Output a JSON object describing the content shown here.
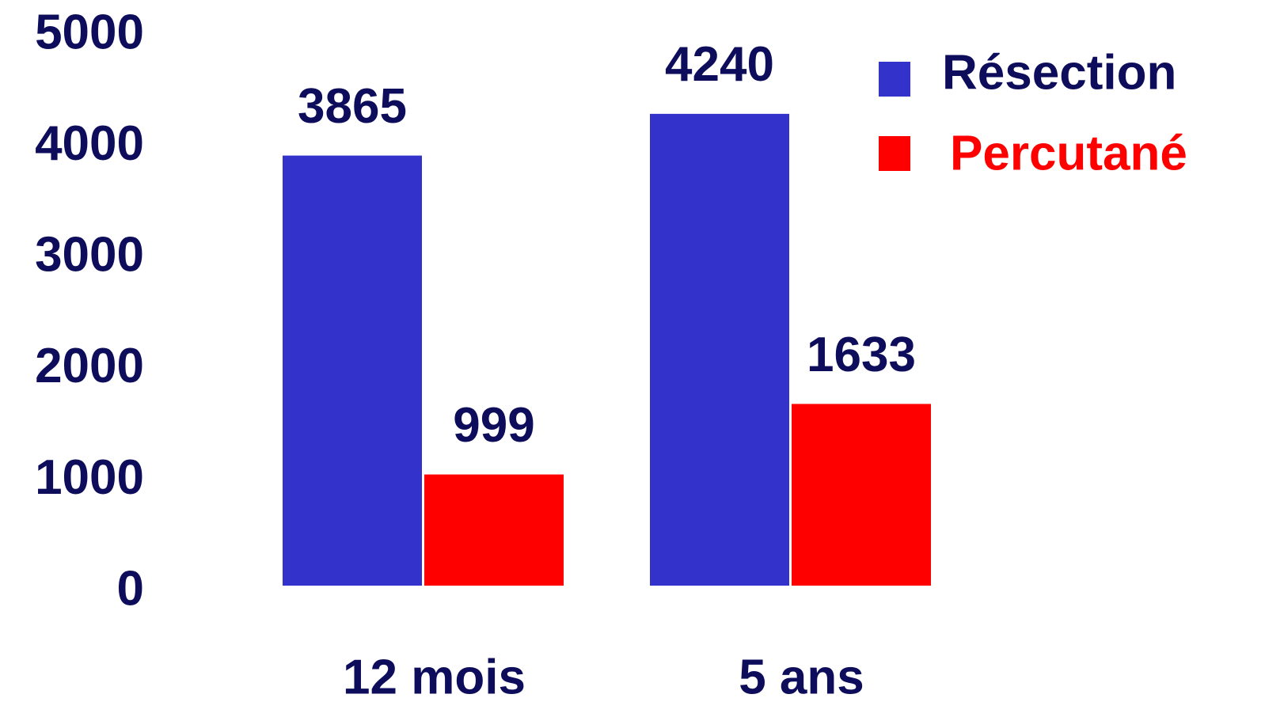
{
  "chart_data": {
    "type": "bar",
    "categories": [
      "12 mois",
      "5 ans"
    ],
    "series": [
      {
        "name": "Résection",
        "color": "#3333cc",
        "values": [
          3865,
          4240
        ]
      },
      {
        "name": "Percutané",
        "color": "#ff0000",
        "values": [
          999,
          1633
        ]
      }
    ],
    "ylim": [
      0,
      5000
    ],
    "yticks": [
      0,
      1000,
      2000,
      3000,
      4000,
      5000
    ],
    "grid": false,
    "legend": "top-right"
  }
}
